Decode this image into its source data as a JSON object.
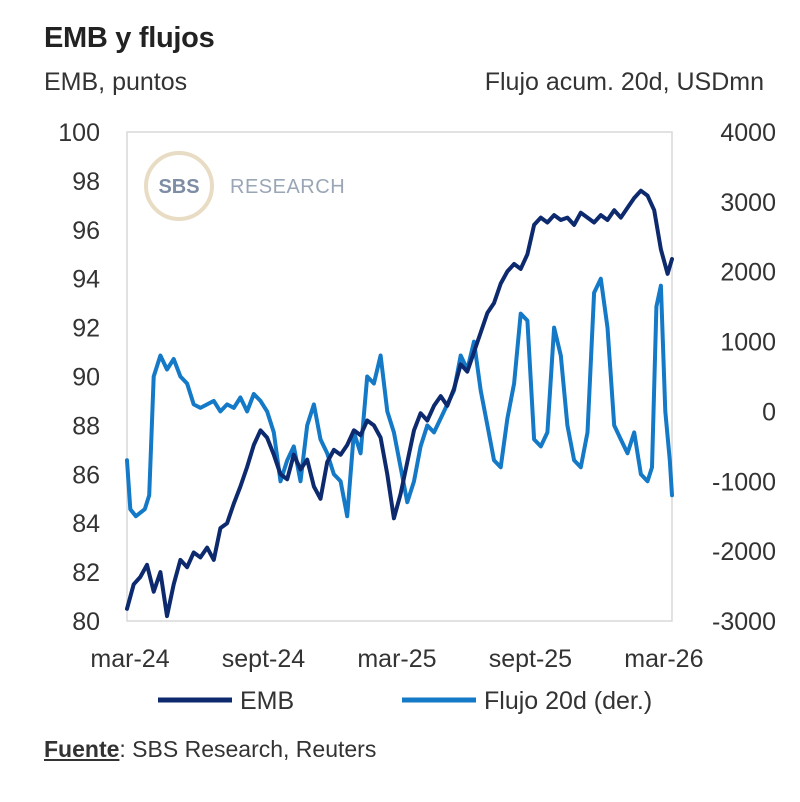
{
  "chart_data": {
    "type": "line",
    "title": "EMB y flujos",
    "ylabel_left": "EMB, puntos",
    "ylabel_right": "Flujo acum. 20d, USDmn",
    "ylim_left": [
      80,
      100
    ],
    "ylim_right": [
      -3000,
      4000
    ],
    "yticks_left": [
      "100",
      "98",
      "96",
      "94",
      "92",
      "90",
      "88",
      "86",
      "84",
      "82",
      "80"
    ],
    "yticks_right": [
      "4000",
      "3000",
      "2000",
      "1000",
      "0",
      "-1000",
      "-2000",
      "-3000"
    ],
    "x_range": [
      0,
      24.5
    ],
    "xticks": [
      {
        "label": "mar-24",
        "x": 0
      },
      {
        "label": "sept-24",
        "x": 6
      },
      {
        "label": "mar-25",
        "x": 12
      },
      {
        "label": "sept-25",
        "x": 18
      },
      {
        "label": "mar-26",
        "x": 24
      }
    ],
    "series": [
      {
        "name": "EMB",
        "axis": "left",
        "color": "#0d2a6e",
        "x": [
          0,
          0.3,
          0.6,
          0.9,
          1.2,
          1.5,
          1.8,
          2.1,
          2.4,
          2.7,
          3.0,
          3.3,
          3.6,
          3.9,
          4.2,
          4.5,
          4.8,
          5.1,
          5.4,
          5.7,
          6.0,
          6.3,
          6.6,
          6.9,
          7.2,
          7.5,
          7.8,
          8.1,
          8.4,
          8.7,
          9.0,
          9.3,
          9.6,
          9.9,
          10.2,
          10.5,
          10.8,
          11.1,
          11.4,
          11.7,
          12.0,
          12.3,
          12.6,
          12.9,
          13.2,
          13.5,
          13.8,
          14.1,
          14.4,
          14.7,
          15.0,
          15.3,
          15.6,
          15.9,
          16.2,
          16.5,
          16.8,
          17.1,
          17.4,
          17.7,
          18.0,
          18.3,
          18.6,
          18.9,
          19.2,
          19.5,
          19.8,
          20.1,
          20.4,
          20.7,
          21.0,
          21.3,
          21.6,
          21.9,
          22.2,
          22.5,
          22.8,
          23.1,
          23.4,
          23.7,
          24.0,
          24.3,
          24.5
        ],
        "values": [
          80.5,
          81.5,
          81.8,
          82.3,
          81.2,
          82.0,
          80.2,
          81.5,
          82.5,
          82.2,
          82.8,
          82.6,
          83.0,
          82.5,
          83.8,
          84.0,
          84.8,
          85.5,
          86.3,
          87.2,
          87.8,
          87.5,
          86.8,
          86.0,
          85.8,
          86.8,
          86.2,
          86.6,
          85.5,
          85.0,
          86.5,
          87.0,
          86.8,
          87.2,
          87.8,
          87.6,
          88.2,
          88.0,
          87.5,
          86.0,
          84.2,
          85.2,
          86.5,
          87.8,
          88.5,
          88.2,
          88.8,
          89.2,
          88.8,
          89.5,
          90.5,
          90.2,
          91.0,
          91.8,
          92.6,
          93.0,
          93.8,
          94.3,
          94.6,
          94.4,
          95.0,
          96.2,
          96.5,
          96.3,
          96.6,
          96.4,
          96.5,
          96.2,
          96.7,
          96.5,
          96.3,
          96.6,
          96.4,
          96.8,
          96.5,
          96.9,
          97.3,
          97.6,
          97.4,
          96.8,
          95.2,
          94.2,
          94.8
        ]
      },
      {
        "name": "Flujo 20d (der.)",
        "axis": "right",
        "color": "#1479c6",
        "x": [
          0,
          0.15,
          0.4,
          0.8,
          1.0,
          1.2,
          1.5,
          1.8,
          2.1,
          2.4,
          2.7,
          3.0,
          3.3,
          3.6,
          3.9,
          4.2,
          4.5,
          4.8,
          5.1,
          5.4,
          5.7,
          6.0,
          6.3,
          6.6,
          6.9,
          7.2,
          7.5,
          7.8,
          8.1,
          8.4,
          8.7,
          9.0,
          9.3,
          9.6,
          9.9,
          10.2,
          10.5,
          10.8,
          11.1,
          11.4,
          11.7,
          12.0,
          12.3,
          12.6,
          12.9,
          13.2,
          13.5,
          13.8,
          14.1,
          14.4,
          14.7,
          15.0,
          15.3,
          15.6,
          15.9,
          16.2,
          16.5,
          16.8,
          17.1,
          17.4,
          17.7,
          18.0,
          18.3,
          18.6,
          18.9,
          19.2,
          19.5,
          19.8,
          20.1,
          20.4,
          20.7,
          21.0,
          21.3,
          21.6,
          21.9,
          22.2,
          22.5,
          22.8,
          23.1,
          23.4,
          23.6,
          23.8,
          24.0,
          24.2,
          24.4,
          24.5
        ],
        "values": [
          -700,
          -1400,
          -1500,
          -1400,
          -1200,
          500,
          800,
          600,
          750,
          500,
          400,
          100,
          50,
          100,
          150,
          0,
          100,
          50,
          200,
          0,
          250,
          150,
          0,
          -300,
          -1000,
          -700,
          -500,
          -1000,
          -200,
          100,
          -400,
          -600,
          -900,
          -1000,
          -1500,
          -300,
          -600,
          500,
          400,
          800,
          0,
          -300,
          -800,
          -1300,
          -1000,
          -500,
          -200,
          -300,
          -100,
          100,
          300,
          800,
          600,
          1000,
          300,
          -200,
          -700,
          -800,
          -100,
          400,
          1400,
          1300,
          -400,
          -500,
          -300,
          1200,
          800,
          -200,
          -700,
          -800,
          -300,
          1700,
          1900,
          1200,
          -200,
          -400,
          -600,
          -300,
          -900,
          -1000,
          -800,
          1500,
          1800,
          0,
          -700,
          -1200
        ]
      }
    ]
  },
  "logo": {
    "brand": "SBS",
    "text": "RESEARCH"
  },
  "legend": {
    "emb_label": "EMB",
    "flujo_label": "Flujo 20d (der.)"
  },
  "source": {
    "label": "Fuente",
    "text": ": SBS Research, Reuters"
  }
}
